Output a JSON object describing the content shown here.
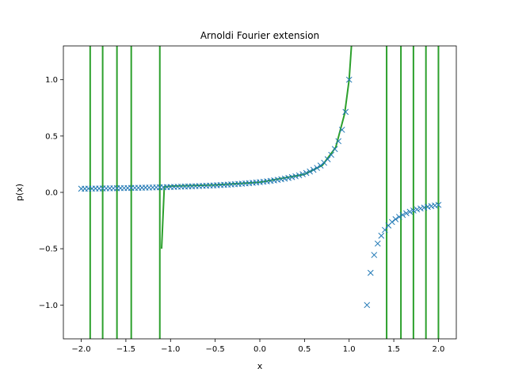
{
  "chart_data": {
    "type": "line",
    "title": "Arnoldi Fourier extension",
    "xlabel": "x",
    "ylabel": "p(x)",
    "xlim": [
      -2.2,
      2.2
    ],
    "ylim": [
      -1.3,
      1.3
    ],
    "x_ticks": [
      -2.0,
      -1.5,
      -1.0,
      -0.5,
      0.0,
      0.5,
      1.0,
      1.5,
      2.0
    ],
    "x_tick_labels": [
      "−2.0",
      "−1.5",
      "−1.0",
      "−0.5",
      "0.0",
      "0.5",
      "1.0",
      "1.5",
      "2.0"
    ],
    "y_ticks": [
      -1.0,
      -0.5,
      0.0,
      0.5,
      1.0
    ],
    "y_tick_labels": [
      "−1.0",
      "−0.5",
      "0.0",
      "0.5",
      "1.0"
    ],
    "grid": false,
    "legend": "none",
    "markers": {
      "name": "",
      "style": "x",
      "color": "#1f77b4",
      "function": "1/(1 - x^2/... ) samples",
      "x_range": [
        -2.0,
        2.0
      ],
      "count": 101
    },
    "curve": {
      "name": "",
      "color": "#2ca02c",
      "segments": [
        {
          "x": [
            -1.1,
            -1.07,
            -1.0,
            -0.5,
            0.0,
            0.5,
            0.7,
            0.85,
            0.95,
            1.0,
            1.03
          ],
          "y": [
            -0.5,
            0.05,
            0.055,
            0.067,
            0.09,
            0.16,
            0.24,
            0.4,
            0.7,
            1.0,
            1.35
          ]
        }
      ],
      "vertical_lines_x": [
        -1.9,
        -1.76,
        -1.6,
        -1.44,
        -1.12,
        1.42,
        1.58,
        1.72,
        1.86,
        2.0
      ]
    },
    "colors": {
      "markers": "#1f77b4",
      "curve": "#2ca02c",
      "axes": "#000000"
    }
  }
}
